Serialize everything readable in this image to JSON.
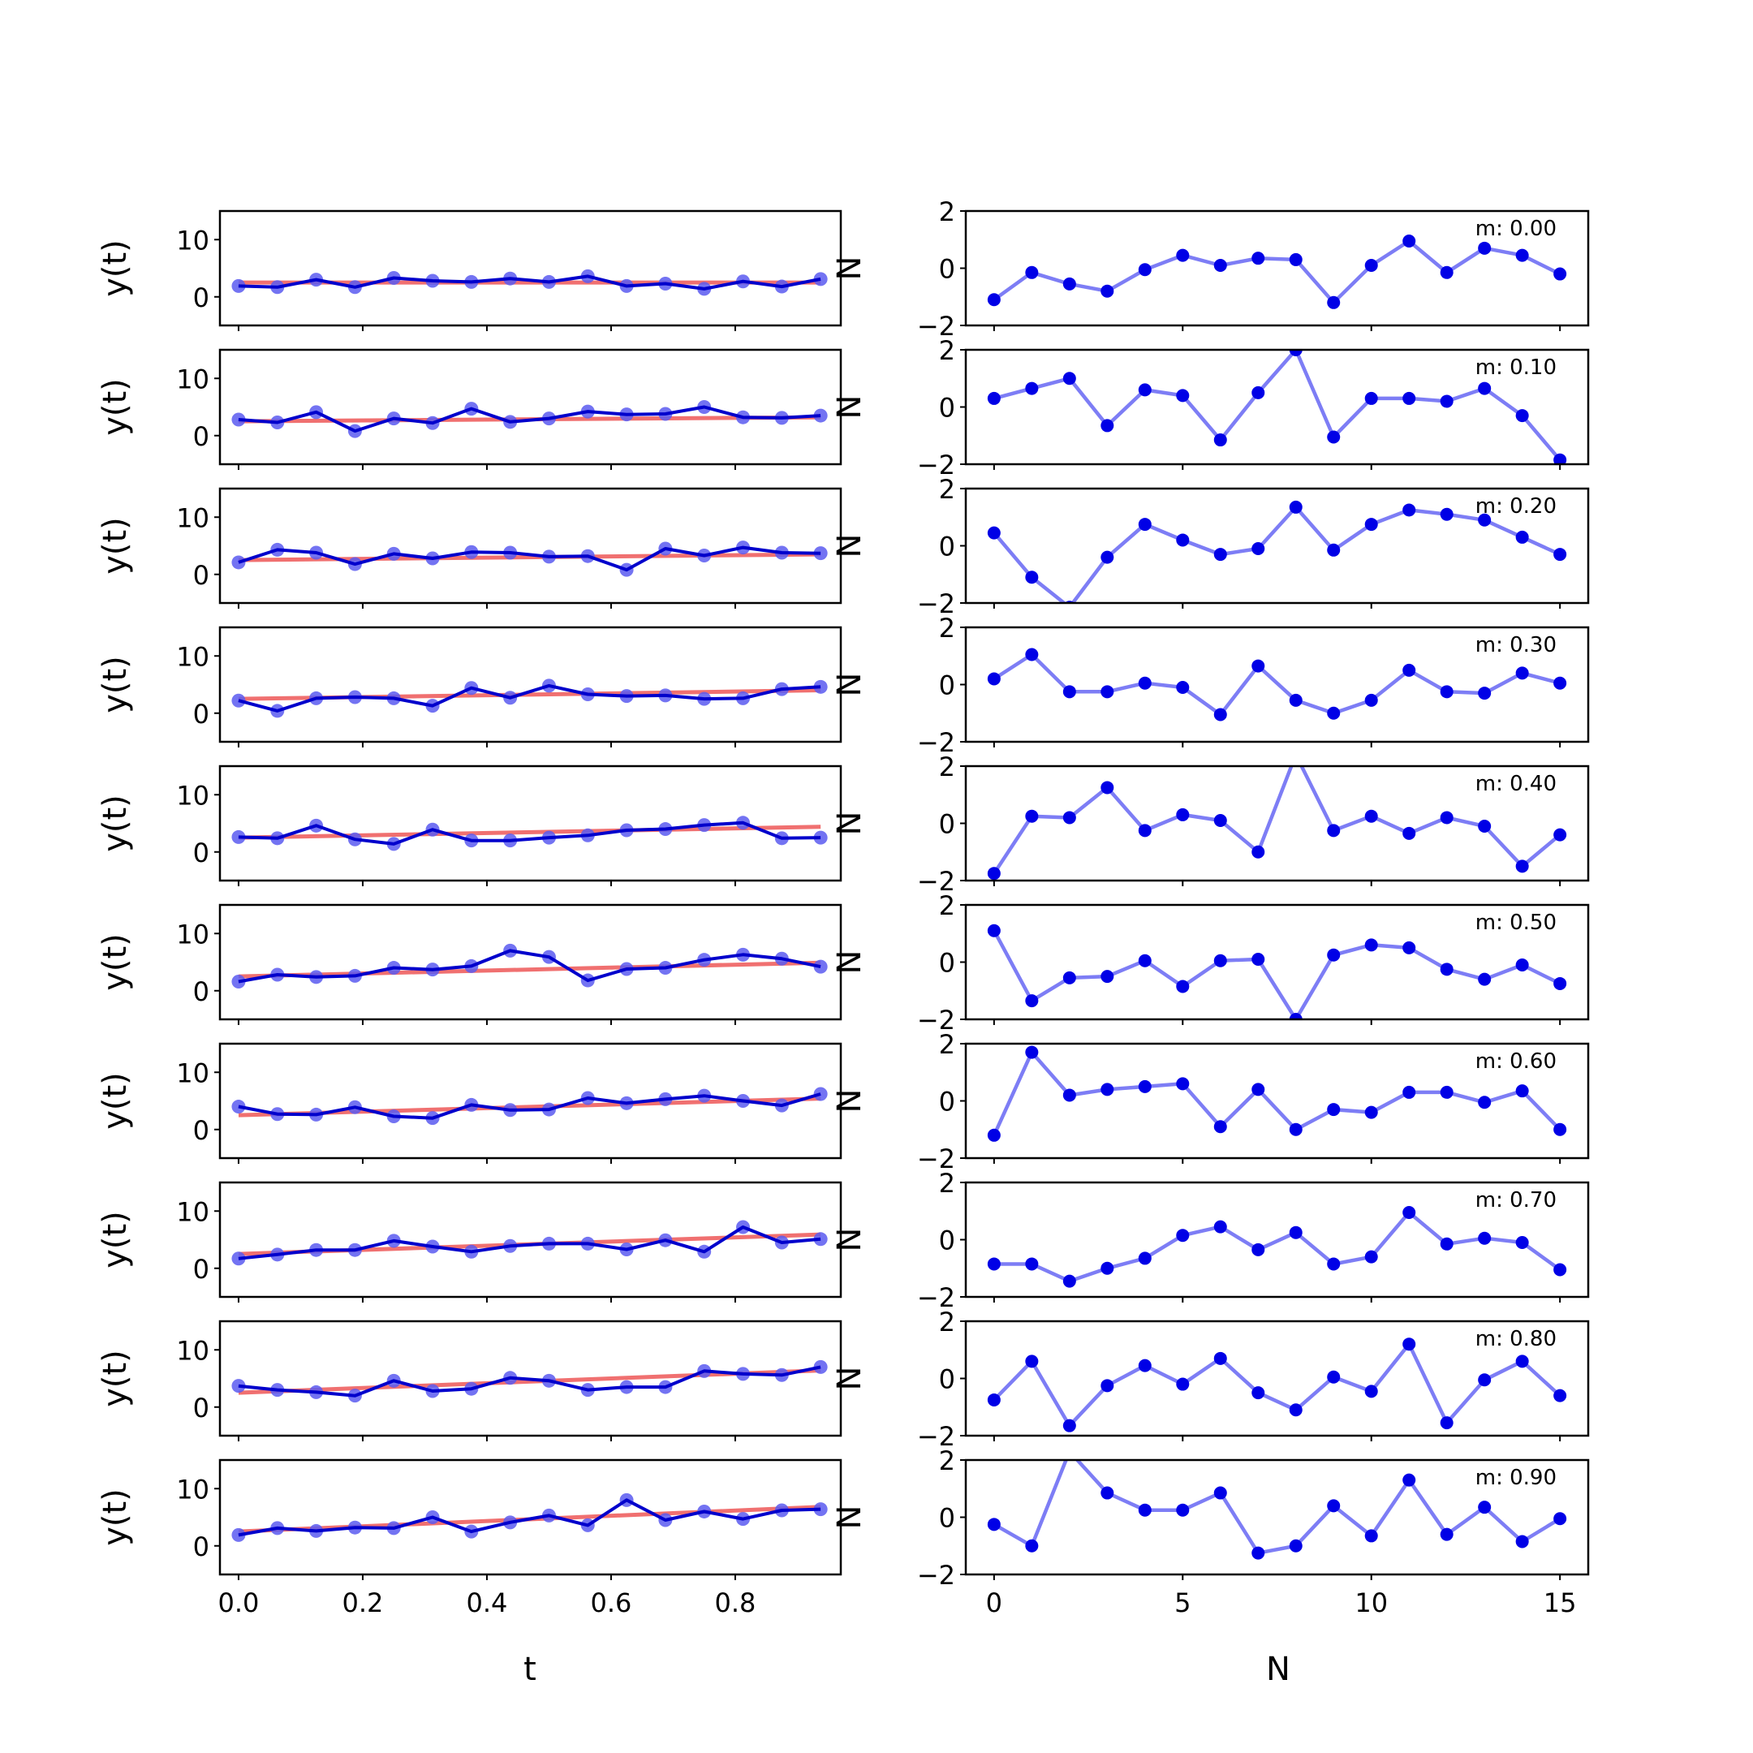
{
  "figure": {
    "left_column": {
      "ylabel": "y(t)",
      "xlabel": "t"
    },
    "right_column": {
      "ylabel": "N",
      "xlabel": "N"
    }
  },
  "chart_data": [
    {
      "type": "line",
      "panel": "time-series",
      "xlabel": "t",
      "ylabel": "y(t)",
      "ylim": [
        -5,
        15
      ],
      "xlim": [
        -0.03,
        0.97
      ],
      "yticks": [
        0,
        10
      ],
      "yticklabels": [
        "0",
        "10"
      ],
      "xticks": [
        0,
        0.2,
        0.4,
        0.6,
        0.8
      ],
      "xticklabels": [
        "0.0",
        "0.2",
        "0.4",
        "0.6",
        "0.8"
      ],
      "x": [
        0,
        0.0625,
        0.125,
        0.1875,
        0.25,
        0.3125,
        0.375,
        0.4375,
        0.5,
        0.5625,
        0.625,
        0.6875,
        0.75,
        0.8125,
        0.875,
        0.9375
      ],
      "colors": {
        "data": "#0000cc",
        "markers": "#5a5af0",
        "fit": "#f07070"
      },
      "rows": [
        {
          "y": [
            1.9,
            1.7,
            3.0,
            1.7,
            3.3,
            2.8,
            2.6,
            3.2,
            2.6,
            3.6,
            1.9,
            2.3,
            1.4,
            2.7,
            1.8,
            3.1
          ],
          "fit": [
            2.5,
            2.5
          ]
        },
        {
          "y": [
            2.8,
            2.3,
            4.1,
            0.8,
            3.0,
            2.2,
            4.7,
            2.4,
            3.0,
            4.2,
            3.7,
            3.8,
            5.0,
            3.2,
            3.1,
            3.5
          ],
          "fit": [
            2.5,
            3.2
          ]
        },
        {
          "y": [
            2.1,
            4.3,
            3.8,
            1.8,
            3.6,
            2.8,
            3.9,
            3.8,
            3.1,
            3.2,
            0.8,
            4.5,
            3.3,
            4.7,
            3.8,
            3.7
          ],
          "fit": [
            2.5,
            3.5
          ]
        },
        {
          "y": [
            2.2,
            0.4,
            2.6,
            2.8,
            2.6,
            1.3,
            4.4,
            2.7,
            4.8,
            3.3,
            3.0,
            3.1,
            2.5,
            2.6,
            4.2,
            4.6
          ],
          "fit": [
            2.5,
            4.0
          ]
        },
        {
          "y": [
            2.6,
            2.4,
            4.6,
            2.2,
            1.4,
            3.9,
            2.0,
            2.0,
            2.5,
            2.9,
            3.8,
            4.0,
            4.7,
            5.1,
            2.4,
            2.5
          ],
          "fit": [
            2.5,
            4.4
          ]
        },
        {
          "y": [
            1.6,
            2.8,
            2.4,
            2.6,
            4.0,
            3.7,
            4.3,
            7.0,
            5.9,
            1.8,
            3.8,
            4.0,
            5.4,
            6.3,
            5.6,
            4.2
          ],
          "fit": [
            2.5,
            4.9
          ]
        },
        {
          "y": [
            4.0,
            2.7,
            2.6,
            3.9,
            2.3,
            2.0,
            4.3,
            3.4,
            3.5,
            5.5,
            4.6,
            5.3,
            5.9,
            5.0,
            4.2,
            6.2
          ],
          "fit": [
            2.5,
            5.4
          ]
        },
        {
          "y": [
            1.7,
            2.4,
            3.2,
            3.2,
            4.8,
            3.8,
            2.9,
            3.9,
            4.3,
            4.3,
            3.3,
            4.9,
            2.9,
            7.2,
            4.5,
            5.1
          ],
          "fit": [
            2.5,
            5.9
          ]
        },
        {
          "y": [
            3.7,
            3.0,
            2.6,
            2.0,
            4.6,
            2.8,
            3.2,
            5.1,
            4.6,
            3.0,
            3.5,
            3.5,
            6.3,
            5.8,
            5.6,
            7.0
          ],
          "fit": [
            2.5,
            6.4
          ]
        },
        {
          "y": [
            1.9,
            3.1,
            2.6,
            3.2,
            3.1,
            5.0,
            2.5,
            4.1,
            5.3,
            3.6,
            8.0,
            4.5,
            6.0,
            4.7,
            6.2,
            6.4
          ],
          "fit": [
            2.5,
            6.8
          ]
        }
      ]
    },
    {
      "type": "line",
      "panel": "residuals",
      "xlabel": "N",
      "ylabel": "N",
      "ylim": [
        -2,
        2
      ],
      "xlim": [
        -0.75,
        15.75
      ],
      "yticks": [
        -2,
        0,
        2
      ],
      "yticklabels": [
        "−2",
        "0",
        "2"
      ],
      "xticks": [
        0,
        5,
        10,
        15
      ],
      "xticklabels": [
        "0",
        "5",
        "10",
        "15"
      ],
      "x": [
        0,
        1,
        2,
        3,
        4,
        5,
        6,
        7,
        8,
        9,
        10,
        11,
        12,
        13,
        14,
        15
      ],
      "colors": {
        "line": "#7d7df5",
        "markers": "#0000e6"
      },
      "rows": [
        {
          "label": "m: 0.00",
          "y": [
            -1.1,
            -0.15,
            -0.55,
            -0.8,
            -0.05,
            0.45,
            0.1,
            0.35,
            0.3,
            -1.2,
            0.1,
            0.95,
            -0.15,
            0.7,
            0.45,
            -0.2
          ]
        },
        {
          "label": "m: 0.10",
          "y": [
            0.3,
            0.65,
            1.0,
            -0.65,
            0.6,
            0.4,
            -1.15,
            0.5,
            2.0,
            -1.05,
            0.3,
            0.3,
            0.2,
            0.65,
            -0.3,
            -1.85
          ]
        },
        {
          "label": "m: 0.20",
          "y": [
            0.45,
            -1.1,
            -2.15,
            -0.4,
            0.75,
            0.2,
            -0.3,
            -0.1,
            1.35,
            -0.15,
            0.75,
            1.25,
            1.1,
            0.9,
            0.3,
            -0.3
          ]
        },
        {
          "label": "m: 0.30",
          "y": [
            0.2,
            1.05,
            -0.25,
            -0.25,
            0.05,
            -0.1,
            -1.05,
            0.65,
            -0.55,
            -1.0,
            -0.55,
            0.5,
            -0.25,
            -0.3,
            0.4,
            0.05
          ]
        },
        {
          "label": "m: 0.40",
          "y": [
            -1.75,
            0.25,
            0.2,
            1.25,
            -0.25,
            0.3,
            0.1,
            -1.0,
            2.4,
            -0.25,
            0.25,
            -0.35,
            0.2,
            -0.1,
            -1.5,
            -0.4
          ]
        },
        {
          "label": "m: 0.50",
          "y": [
            1.1,
            -1.35,
            -0.55,
            -0.5,
            0.05,
            -0.85,
            0.05,
            0.1,
            -2.0,
            0.25,
            0.6,
            0.5,
            -0.25,
            -0.6,
            -0.1,
            -0.75
          ]
        },
        {
          "label": "m: 0.60",
          "y": [
            -1.2,
            1.7,
            0.2,
            0.4,
            0.5,
            0.6,
            -0.9,
            0.4,
            -1.0,
            -0.3,
            -0.4,
            0.3,
            0.3,
            -0.05,
            0.35,
            -1.0
          ]
        },
        {
          "label": "m: 0.70",
          "y": [
            -0.85,
            -0.85,
            -1.45,
            -1.0,
            -0.65,
            0.15,
            0.45,
            -0.35,
            0.25,
            -0.85,
            -0.6,
            0.95,
            -0.15,
            0.05,
            -0.1,
            -1.05
          ]
        },
        {
          "label": "m: 0.80",
          "y": [
            -0.75,
            0.6,
            -1.65,
            -0.25,
            0.45,
            -0.2,
            0.7,
            -0.5,
            -1.1,
            0.05,
            -0.45,
            1.2,
            -1.55,
            -0.05,
            0.6,
            -0.6
          ]
        },
        {
          "label": "m: 0.90",
          "y": [
            -0.25,
            -1.0,
            2.3,
            0.85,
            0.25,
            0.25,
            0.85,
            -1.25,
            -1.0,
            0.4,
            -0.65,
            1.3,
            -0.6,
            0.35,
            -0.85,
            -0.05
          ]
        }
      ]
    }
  ]
}
